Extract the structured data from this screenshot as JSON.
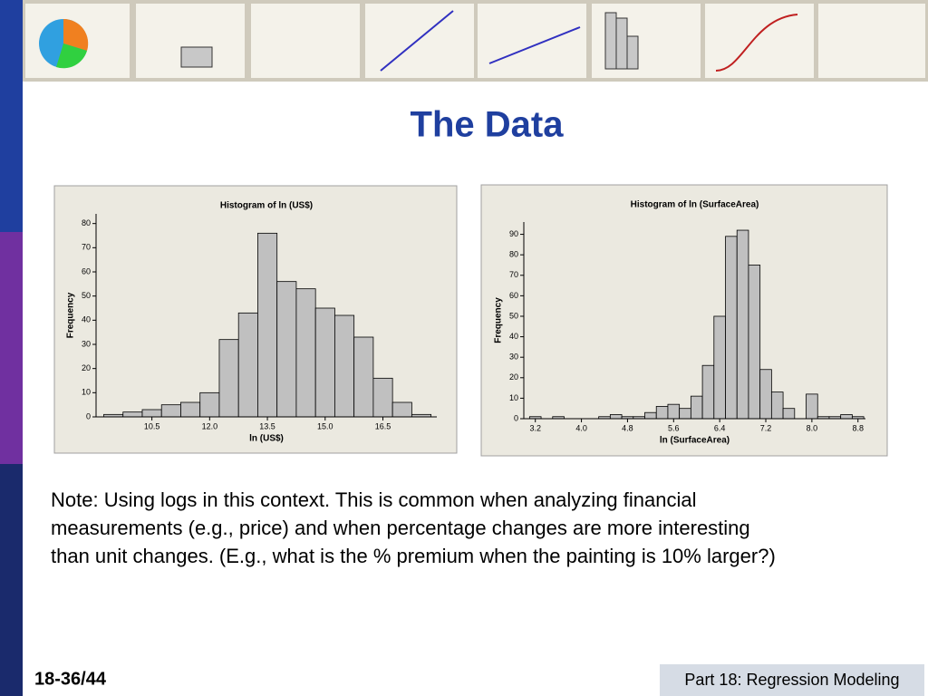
{
  "title": "The Data",
  "note": [
    "Note: Using logs in this context.  This is common when analyzing financial",
    "measurements (e.g., price) and when percentage changes are more interesting",
    "than unit changes. (E.g., what is the % premium when the painting is 10% larger?)"
  ],
  "page_number": "18-36/44",
  "footer": "Part 18: Regression Modeling",
  "chart_data": [
    {
      "type": "histogram",
      "title": "Histogram of ln (US$)",
      "xlabel": "ln (US$)",
      "ylabel": "Frequency",
      "color": "#c0c0c0",
      "bins": [
        9.25,
        9.75,
        10.25,
        10.75,
        11.25,
        11.75,
        12.25,
        12.75,
        13.25,
        13.75,
        14.25,
        14.75,
        15.25,
        15.75,
        16.25,
        16.75,
        17.25,
        17.75
      ],
      "values": [
        1,
        2,
        3,
        5,
        6,
        10,
        32,
        43,
        76,
        56,
        53,
        45,
        42,
        33,
        16,
        6,
        1
      ],
      "xlim": [
        9.05,
        17.9
      ],
      "ylim": [
        0,
        84
      ],
      "xticks": [
        10.5,
        {
          "value": 12,
          "label": "12.0"
        },
        13.5,
        {
          "value": 15,
          "label": "15.0"
        },
        16.5
      ],
      "yticks": [
        0,
        10,
        20,
        30,
        40,
        50,
        60,
        70,
        80
      ]
    },
    {
      "type": "histogram",
      "title": "Histogram of ln (SurfaceArea)",
      "xlabel": "ln (SurfaceArea)",
      "ylabel": "Frequency",
      "color": "#c0c0c0",
      "bins": [
        3.1,
        3.3,
        3.5,
        3.7,
        3.9,
        4.1,
        4.3,
        4.5,
        4.7,
        4.9,
        5.1,
        5.3,
        5.5,
        5.7,
        5.9,
        6.1,
        6.3,
        6.5,
        6.7,
        6.9,
        7.1,
        7.3,
        7.5,
        7.7,
        7.9,
        8.1,
        8.3,
        8.5,
        8.7,
        8.9
      ],
      "values": [
        1,
        0,
        1,
        0,
        0,
        0,
        1,
        2,
        1,
        1,
        3,
        6,
        7,
        5,
        11,
        26,
        50,
        89,
        92,
        75,
        24,
        13,
        5,
        0,
        12,
        1,
        1,
        2,
        1
      ],
      "xlim": [
        3.0,
        8.93
      ],
      "ylim": [
        0,
        96
      ],
      "xticks": [
        3.2,
        {
          "value": 4,
          "label": "4.0"
        },
        4.8,
        5.6,
        6.4,
        7.2,
        {
          "value": 8,
          "label": "8.0"
        },
        8.8
      ],
      "yticks": [
        0,
        10,
        20,
        30,
        40,
        50,
        60,
        70,
        80,
        90
      ]
    }
  ]
}
